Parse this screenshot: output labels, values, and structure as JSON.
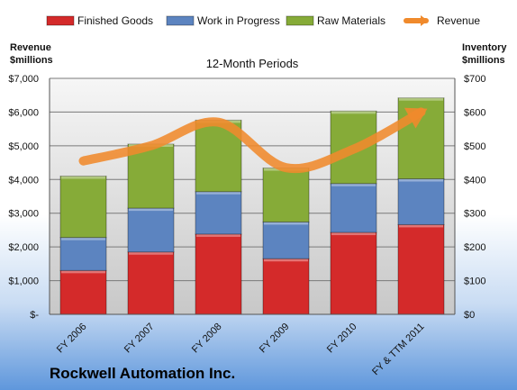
{
  "chart_data": {
    "type": "bar",
    "stacked": true,
    "title": "12-Month Periods",
    "company": "Rockwell Automation Inc.",
    "categories": [
      "FY 2006",
      "FY 2007",
      "FY 2008",
      "FY 2009",
      "FY 2010",
      "FY & TTM 2011"
    ],
    "series": [
      {
        "name": "Finished Goods",
        "axis": "right",
        "color": "#d42a2a",
        "values": [
          130,
          185,
          238,
          165,
          243,
          266
        ]
      },
      {
        "name": "Work in Progress",
        "axis": "right",
        "color": "#5c84c0",
        "values": [
          98,
          130,
          126,
          109,
          145,
          136
        ]
      },
      {
        "name": "Raw Materials",
        "axis": "right",
        "color": "#86ab38",
        "values": [
          182,
          190,
          212,
          160,
          215,
          240
        ]
      },
      {
        "name": "Revenue",
        "axis": "left",
        "type": "line",
        "color": "#f08a2c",
        "values": [
          4550,
          5000,
          5700,
          4350,
          4900,
          6000
        ]
      }
    ],
    "left_axis": {
      "label": "Revenue\n$millions",
      "range": [
        0,
        7000
      ],
      "ticks": [
        0,
        1000,
        2000,
        3000,
        4000,
        5000,
        6000,
        7000
      ],
      "tick_labels": [
        "$-",
        "$1,000",
        "$2,000",
        "$3,000",
        "$4,000",
        "$5,000",
        "$6,000",
        "$7,000"
      ]
    },
    "right_axis": {
      "label": "Inventory\n$millions",
      "range": [
        0,
        700
      ],
      "ticks": [
        0,
        100,
        200,
        300,
        400,
        500,
        600,
        700
      ],
      "tick_labels": [
        "$0",
        "$100",
        "$200",
        "$300",
        "$400",
        "$500",
        "$600",
        "$700"
      ]
    },
    "grid": true,
    "legend_position": "top"
  }
}
